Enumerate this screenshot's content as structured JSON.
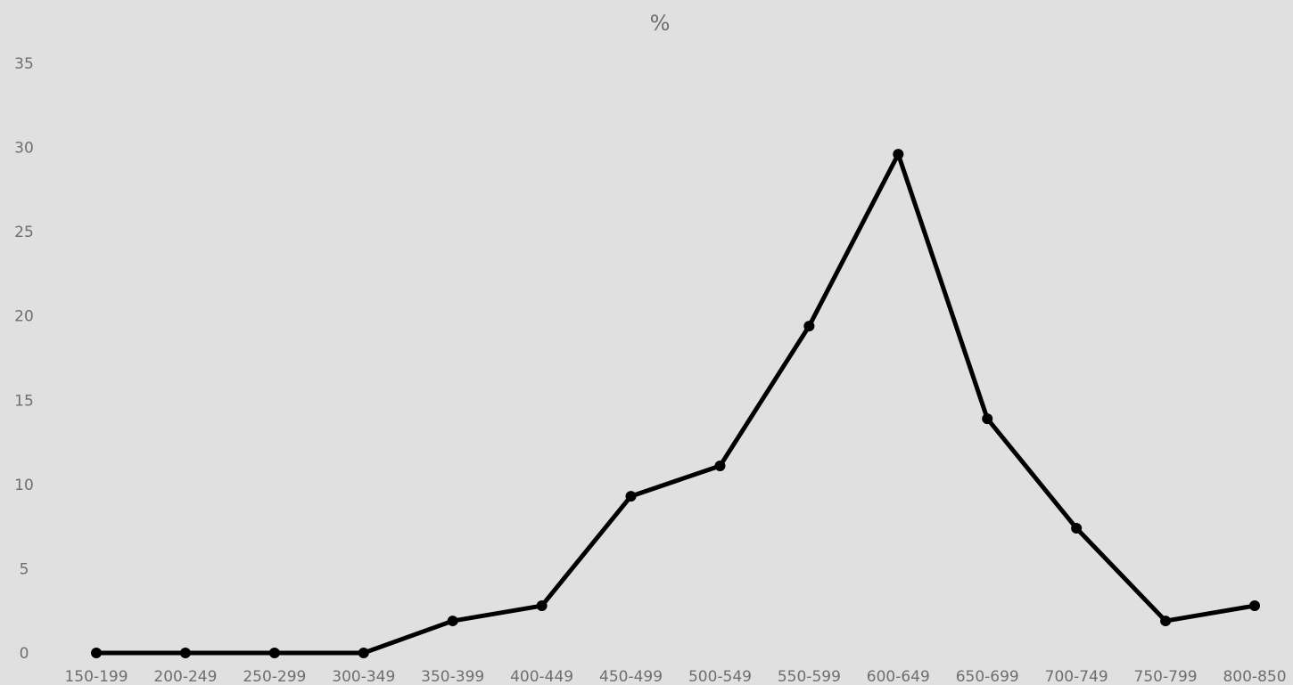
{
  "chart_data": {
    "type": "line",
    "title": "%",
    "xlabel": "",
    "ylabel": "",
    "categories": [
      "150-199",
      "200-249",
      "250-299",
      "300-349",
      "350-399",
      "400-449",
      "450-499",
      "500-549",
      "550-599",
      "600-649",
      "650-699",
      "700-749",
      "750-799",
      "800-850"
    ],
    "values": [
      0,
      0,
      0,
      0,
      1.9,
      2.8,
      9.3,
      11.1,
      19.4,
      29.6,
      13.9,
      7.4,
      1.9,
      2.8
    ],
    "ylim": [
      0,
      35
    ],
    "yticks": [
      "0",
      "5",
      "10",
      "15",
      "20",
      "25",
      "30",
      "35"
    ],
    "grid": false,
    "legend": "none",
    "colors": {
      "background": "#e0e0e0",
      "line": "#000000",
      "marker": "#000000",
      "text": "#6e6e6e"
    }
  }
}
